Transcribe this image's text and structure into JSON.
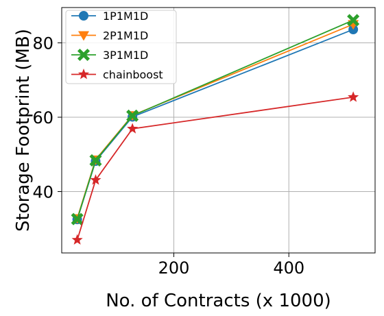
{
  "chart_data": {
    "type": "line",
    "xlabel": "No. of Contracts (x 1000)",
    "ylabel": "Storage Footprint (MB)",
    "xlim": [
      5,
      550
    ],
    "ylim": [
      23.5,
      89.5
    ],
    "xticks": [
      200,
      400
    ],
    "yticks": [
      40,
      60,
      80
    ],
    "grid": true,
    "legend_position": "upper-left",
    "x": [
      32,
      64,
      128,
      512
    ],
    "series": [
      {
        "name": "1P1M1D",
        "color": "#1f77b4",
        "marker": "circle",
        "values": [
          32.5,
          48.2,
          60.1,
          83.6
        ]
      },
      {
        "name": "2P1M1D",
        "color": "#ff7f0e",
        "marker": "triangle-down",
        "values": [
          32.8,
          48.6,
          60.5,
          85.0
        ]
      },
      {
        "name": "3P1M1D",
        "color": "#2ca02c",
        "marker": "x-filled",
        "values": [
          32.6,
          48.4,
          60.4,
          86.1
        ]
      },
      {
        "name": "chainboost",
        "color": "#d62728",
        "marker": "star",
        "values": [
          27.0,
          43.1,
          56.9,
          65.4
        ]
      }
    ]
  }
}
